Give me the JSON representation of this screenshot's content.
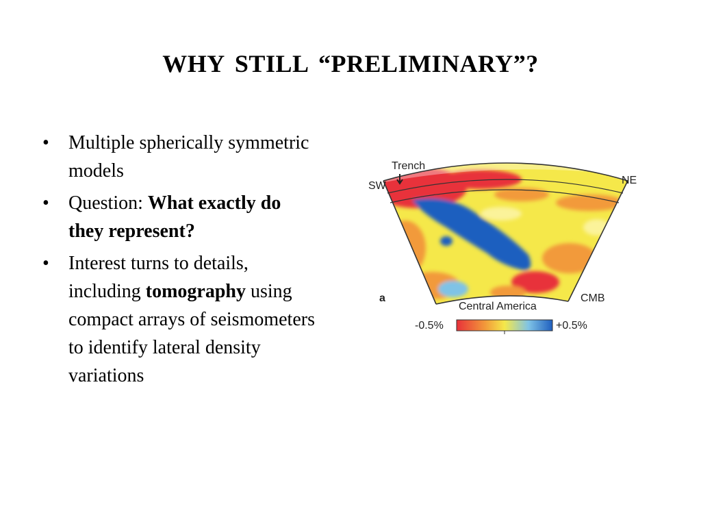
{
  "slide": {
    "title": "WHY  STILL  “PRELIMINARY”?",
    "bullets": [
      {
        "plain": "Multiple spherically symmetric models",
        "bold": "",
        "after": ""
      },
      {
        "plain": "Question: ",
        "bold": "What exactly do they represent?",
        "after": ""
      },
      {
        "plain": "Interest turns to details, including ",
        "bold": "tomography",
        "after": " using compact arrays of seismometers to identify lateral density variations"
      }
    ],
    "bullet_glyph": "•"
  },
  "figure": {
    "labels": {
      "trench": "Trench",
      "sw": "SW",
      "ne": "NE",
      "panel": "a",
      "region": "Central America",
      "cmb": "CMB",
      "scale_min": "-0.5%",
      "scale_max": "+0.5%"
    },
    "colors": {
      "fast": "#1f5fbf",
      "slow": "#e8313a",
      "neutral": "#f5e84a",
      "warm": "#f29a3a"
    }
  }
}
